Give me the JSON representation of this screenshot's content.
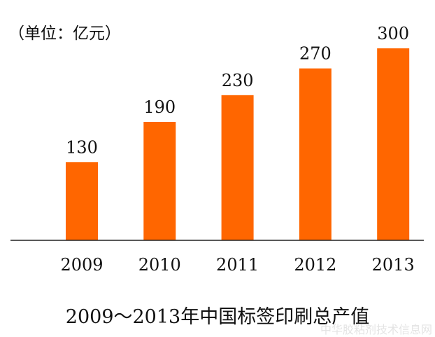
{
  "chart_data": {
    "type": "bar",
    "title": "2009～2013年中国标签印刷总产值",
    "unit_label": "（单位：亿元）",
    "categories": [
      "2009",
      "2010",
      "2011",
      "2012",
      "2013"
    ],
    "values": [
      130,
      190,
      230,
      270,
      300
    ],
    "ylim": [
      13,
      300
    ],
    "bar_color": "#ff6600",
    "grid": false
  },
  "watermark": "中华胶粘剂技术信息网"
}
